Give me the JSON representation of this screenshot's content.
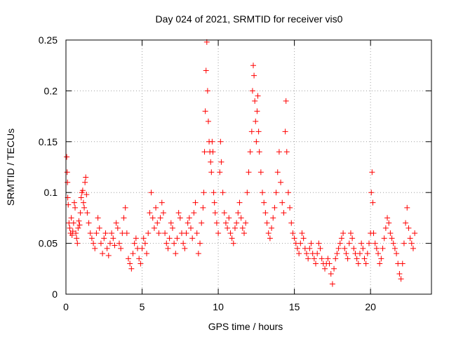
{
  "chart_data": {
    "type": "scatter",
    "title": "Day 024 of 2021, SRMTID for receiver vis0",
    "xlabel": "GPS time / hours",
    "ylabel": "SRMTID / TECUs",
    "xlim": [
      0,
      24
    ],
    "ylim": [
      0,
      0.25
    ],
    "xticks": [
      0,
      5,
      10,
      15,
      20
    ],
    "xtick_labels": [
      "0",
      "5",
      "10",
      "15",
      "20"
    ],
    "yticks": [
      0,
      0.05,
      0.1,
      0.15,
      0.2,
      0.25
    ],
    "ytick_labels": [
      "0",
      "0.05",
      "0.1",
      "0.15",
      "0.2",
      "0.25"
    ],
    "grid": true,
    "marker": "+",
    "color": "#ff0000",
    "series": [
      {
        "name": "SRMTID",
        "points": [
          [
            0.05,
            0.135
          ],
          [
            0.08,
            0.12
          ],
          [
            0.1,
            0.11
          ],
          [
            0.12,
            0.095
          ],
          [
            0.15,
            0.088
          ],
          [
            0.2,
            0.07
          ],
          [
            0.25,
            0.065
          ],
          [
            0.3,
            0.06
          ],
          [
            0.35,
            0.075
          ],
          [
            0.4,
            0.058
          ],
          [
            0.45,
            0.062
          ],
          [
            0.5,
            0.07
          ],
          [
            0.55,
            0.09
          ],
          [
            0.6,
            0.085
          ],
          [
            0.65,
            0.06
          ],
          [
            0.7,
            0.055
          ],
          [
            0.75,
            0.05
          ],
          [
            0.8,
            0.065
          ],
          [
            0.85,
            0.072
          ],
          [
            0.9,
            0.068
          ],
          [
            0.95,
            0.08
          ],
          [
            1.0,
            0.095
          ],
          [
            1.05,
            0.1
          ],
          [
            1.1,
            0.102
          ],
          [
            1.15,
            0.09
          ],
          [
            1.2,
            0.085
          ],
          [
            1.25,
            0.11
          ],
          [
            1.3,
            0.115
          ],
          [
            1.35,
            0.098
          ],
          [
            1.4,
            0.08
          ],
          [
            1.5,
            0.07
          ],
          [
            1.6,
            0.06
          ],
          [
            1.7,
            0.055
          ],
          [
            1.8,
            0.05
          ],
          [
            1.9,
            0.045
          ],
          [
            2.0,
            0.06
          ],
          [
            2.1,
            0.075
          ],
          [
            2.2,
            0.065
          ],
          [
            2.3,
            0.05
          ],
          [
            2.4,
            0.04
          ],
          [
            2.5,
            0.055
          ],
          [
            2.6,
            0.06
          ],
          [
            2.7,
            0.045
          ],
          [
            2.8,
            0.038
          ],
          [
            2.9,
            0.05
          ],
          [
            3.0,
            0.06
          ],
          [
            3.1,
            0.055
          ],
          [
            3.2,
            0.048
          ],
          [
            3.3,
            0.07
          ],
          [
            3.4,
            0.065
          ],
          [
            3.5,
            0.05
          ],
          [
            3.6,
            0.045
          ],
          [
            3.7,
            0.06
          ],
          [
            3.8,
            0.075
          ],
          [
            3.9,
            0.085
          ],
          [
            4.0,
            0.06
          ],
          [
            4.1,
            0.035
          ],
          [
            4.2,
            0.03
          ],
          [
            4.3,
            0.025
          ],
          [
            4.4,
            0.04
          ],
          [
            4.5,
            0.05
          ],
          [
            4.6,
            0.055
          ],
          [
            4.7,
            0.045
          ],
          [
            4.8,
            0.035
          ],
          [
            4.9,
            0.03
          ],
          [
            5.0,
            0.045
          ],
          [
            5.1,
            0.055
          ],
          [
            5.2,
            0.05
          ],
          [
            5.3,
            0.04
          ],
          [
            5.4,
            0.06
          ],
          [
            5.5,
            0.08
          ],
          [
            5.6,
            0.1
          ],
          [
            5.7,
            0.075
          ],
          [
            5.8,
            0.065
          ],
          [
            5.9,
            0.085
          ],
          [
            6.0,
            0.07
          ],
          [
            6.1,
            0.06
          ],
          [
            6.2,
            0.075
          ],
          [
            6.3,
            0.09
          ],
          [
            6.4,
            0.08
          ],
          [
            6.5,
            0.06
          ],
          [
            6.6,
            0.05
          ],
          [
            6.7,
            0.045
          ],
          [
            6.8,
            0.055
          ],
          [
            6.9,
            0.07
          ],
          [
            7.0,
            0.065
          ],
          [
            7.1,
            0.05
          ],
          [
            7.2,
            0.04
          ],
          [
            7.3,
            0.055
          ],
          [
            7.4,
            0.08
          ],
          [
            7.5,
            0.075
          ],
          [
            7.6,
            0.06
          ],
          [
            7.7,
            0.05
          ],
          [
            7.8,
            0.045
          ],
          [
            7.9,
            0.06
          ],
          [
            8.0,
            0.07
          ],
          [
            8.1,
            0.075
          ],
          [
            8.2,
            0.065
          ],
          [
            8.3,
            0.055
          ],
          [
            8.4,
            0.08
          ],
          [
            8.5,
            0.09
          ],
          [
            8.6,
            0.06
          ],
          [
            8.7,
            0.04
          ],
          [
            8.8,
            0.05
          ],
          [
            8.9,
            0.07
          ],
          [
            9.0,
            0.085
          ],
          [
            9.05,
            0.1
          ],
          [
            9.1,
            0.14
          ],
          [
            9.15,
            0.18
          ],
          [
            9.2,
            0.22
          ],
          [
            9.25,
            0.248
          ],
          [
            9.3,
            0.2
          ],
          [
            9.35,
            0.17
          ],
          [
            9.4,
            0.15
          ],
          [
            9.45,
            0.14
          ],
          [
            9.5,
            0.13
          ],
          [
            9.55,
            0.12
          ],
          [
            9.6,
            0.15
          ],
          [
            9.65,
            0.14
          ],
          [
            9.7,
            0.1
          ],
          [
            9.75,
            0.09
          ],
          [
            9.8,
            0.08
          ],
          [
            9.9,
            0.07
          ],
          [
            10.0,
            0.06
          ],
          [
            10.1,
            0.12
          ],
          [
            10.15,
            0.15
          ],
          [
            10.2,
            0.13
          ],
          [
            10.3,
            0.1
          ],
          [
            10.4,
            0.08
          ],
          [
            10.5,
            0.07
          ],
          [
            10.6,
            0.065
          ],
          [
            10.7,
            0.075
          ],
          [
            10.8,
            0.06
          ],
          [
            10.9,
            0.055
          ],
          [
            11.0,
            0.05
          ],
          [
            11.1,
            0.065
          ],
          [
            11.2,
            0.07
          ],
          [
            11.3,
            0.08
          ],
          [
            11.4,
            0.09
          ],
          [
            11.5,
            0.075
          ],
          [
            11.6,
            0.065
          ],
          [
            11.7,
            0.06
          ],
          [
            11.8,
            0.07
          ],
          [
            11.9,
            0.1
          ],
          [
            12.0,
            0.12
          ],
          [
            12.1,
            0.14
          ],
          [
            12.2,
            0.16
          ],
          [
            12.25,
            0.2
          ],
          [
            12.3,
            0.225
          ],
          [
            12.35,
            0.215
          ],
          [
            12.4,
            0.19
          ],
          [
            12.45,
            0.17
          ],
          [
            12.5,
            0.15
          ],
          [
            12.55,
            0.18
          ],
          [
            12.6,
            0.195
          ],
          [
            12.65,
            0.16
          ],
          [
            12.7,
            0.14
          ],
          [
            12.8,
            0.12
          ],
          [
            12.9,
            0.1
          ],
          [
            13.0,
            0.09
          ],
          [
            13.1,
            0.08
          ],
          [
            13.2,
            0.07
          ],
          [
            13.3,
            0.06
          ],
          [
            13.4,
            0.055
          ],
          [
            13.5,
            0.065
          ],
          [
            13.6,
            0.075
          ],
          [
            13.7,
            0.085
          ],
          [
            13.8,
            0.1
          ],
          [
            13.9,
            0.12
          ],
          [
            14.0,
            0.14
          ],
          [
            14.1,
            0.11
          ],
          [
            14.2,
            0.09
          ],
          [
            14.3,
            0.08
          ],
          [
            14.4,
            0.16
          ],
          [
            14.45,
            0.19
          ],
          [
            14.5,
            0.14
          ],
          [
            14.6,
            0.1
          ],
          [
            14.7,
            0.085
          ],
          [
            14.8,
            0.07
          ],
          [
            14.9,
            0.06
          ],
          [
            15.0,
            0.055
          ],
          [
            15.1,
            0.05
          ],
          [
            15.2,
            0.045
          ],
          [
            15.3,
            0.04
          ],
          [
            15.4,
            0.05
          ],
          [
            15.5,
            0.06
          ],
          [
            15.6,
            0.055
          ],
          [
            15.7,
            0.045
          ],
          [
            15.8,
            0.04
          ],
          [
            15.9,
            0.035
          ],
          [
            16.0,
            0.045
          ],
          [
            16.1,
            0.05
          ],
          [
            16.2,
            0.04
          ],
          [
            16.3,
            0.035
          ],
          [
            16.4,
            0.03
          ],
          [
            16.5,
            0.04
          ],
          [
            16.6,
            0.05
          ],
          [
            16.7,
            0.045
          ],
          [
            16.8,
            0.035
          ],
          [
            16.9,
            0.03
          ],
          [
            17.0,
            0.025
          ],
          [
            17.1,
            0.03
          ],
          [
            17.2,
            0.035
          ],
          [
            17.3,
            0.03
          ],
          [
            17.4,
            0.02
          ],
          [
            17.5,
            0.01
          ],
          [
            17.6,
            0.025
          ],
          [
            17.7,
            0.035
          ],
          [
            17.8,
            0.04
          ],
          [
            17.9,
            0.045
          ],
          [
            18.0,
            0.05
          ],
          [
            18.1,
            0.055
          ],
          [
            18.2,
            0.06
          ],
          [
            18.3,
            0.045
          ],
          [
            18.4,
            0.04
          ],
          [
            18.5,
            0.035
          ],
          [
            18.6,
            0.05
          ],
          [
            18.7,
            0.06
          ],
          [
            18.8,
            0.055
          ],
          [
            18.9,
            0.045
          ],
          [
            19.0,
            0.04
          ],
          [
            19.1,
            0.035
          ],
          [
            19.2,
            0.03
          ],
          [
            19.3,
            0.04
          ],
          [
            19.4,
            0.05
          ],
          [
            19.5,
            0.045
          ],
          [
            19.6,
            0.035
          ],
          [
            19.7,
            0.03
          ],
          [
            19.8,
            0.04
          ],
          [
            19.9,
            0.05
          ],
          [
            20.0,
            0.06
          ],
          [
            20.05,
            0.1
          ],
          [
            20.1,
            0.12
          ],
          [
            20.15,
            0.09
          ],
          [
            20.2,
            0.06
          ],
          [
            20.3,
            0.05
          ],
          [
            20.4,
            0.045
          ],
          [
            20.5,
            0.04
          ],
          [
            20.6,
            0.03
          ],
          [
            20.7,
            0.035
          ],
          [
            20.8,
            0.045
          ],
          [
            20.9,
            0.055
          ],
          [
            21.0,
            0.065
          ],
          [
            21.1,
            0.075
          ],
          [
            21.2,
            0.07
          ],
          [
            21.3,
            0.06
          ],
          [
            21.4,
            0.055
          ],
          [
            21.5,
            0.05
          ],
          [
            21.6,
            0.045
          ],
          [
            21.7,
            0.04
          ],
          [
            21.8,
            0.03
          ],
          [
            21.9,
            0.02
          ],
          [
            22.0,
            0.015
          ],
          [
            22.1,
            0.03
          ],
          [
            22.2,
            0.05
          ],
          [
            22.3,
            0.07
          ],
          [
            22.4,
            0.085
          ],
          [
            22.5,
            0.065
          ],
          [
            22.6,
            0.055
          ],
          [
            22.7,
            0.05
          ],
          [
            22.8,
            0.045
          ],
          [
            22.9,
            0.06
          ]
        ]
      }
    ]
  }
}
